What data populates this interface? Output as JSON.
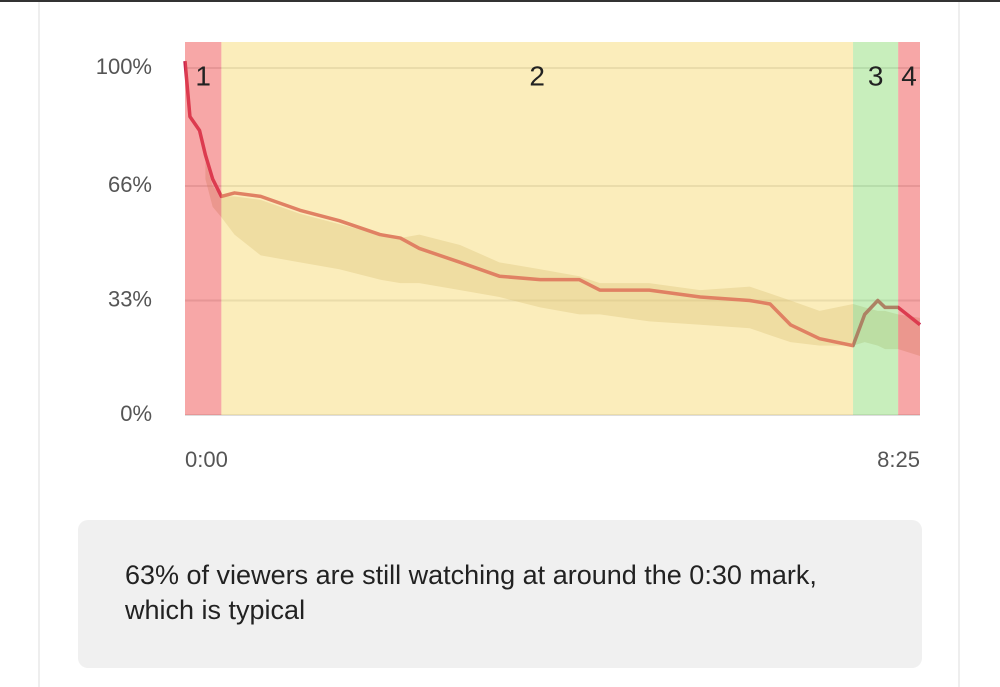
{
  "chart_data": {
    "type": "line",
    "x": [
      0,
      3.4,
      10,
      14,
      19,
      25,
      34,
      52,
      79,
      106,
      134,
      148,
      161,
      189,
      216,
      244,
      271,
      285,
      319,
      354,
      388,
      402,
      416,
      436,
      459,
      467,
      476,
      481,
      490,
      505
    ],
    "series": [
      {
        "color": "#c8264e",
        "values": [
          102,
          86,
          82,
          75,
          68,
          63,
          64,
          63,
          59,
          56,
          52,
          51,
          48,
          44,
          40,
          39,
          39,
          36,
          36,
          34,
          33,
          32,
          26,
          22,
          20,
          29,
          33,
          31,
          31,
          26
        ]
      }
    ],
    "band": {
      "color": "#b8a070",
      "upper": [
        null,
        null,
        null,
        73,
        66,
        63,
        63,
        62,
        58,
        55,
        52,
        51,
        52,
        49,
        44,
        42,
        40,
        38,
        38,
        36,
        37,
        35,
        33,
        30,
        32,
        31,
        30,
        30,
        29,
        28
      ],
      "lower": [
        null,
        null,
        null,
        68,
        60,
        57,
        52,
        46,
        44,
        42,
        39,
        38,
        38,
        36,
        34,
        31,
        29,
        29,
        27,
        26,
        25,
        23,
        21,
        20,
        20,
        21,
        20,
        19,
        19,
        17
      ]
    },
    "segments": [
      {
        "label": "1",
        "start": 0,
        "end": 25,
        "color": "#f05050"
      },
      {
        "label": "2",
        "start": 25,
        "end": 459,
        "color": "#f8dc78"
      },
      {
        "label": "3",
        "start": 459,
        "end": 490,
        "color": "#92dd7a"
      },
      {
        "label": "4",
        "start": 490,
        "end": 505,
        "color": "#f05050"
      }
    ],
    "xlim": [
      0,
      505
    ],
    "xticks": [
      {
        "value": 0,
        "label": "0:00"
      },
      {
        "value": 505,
        "label": "8:25"
      }
    ],
    "ylim": [
      0,
      107.5
    ],
    "yticks": [
      {
        "value": 0,
        "label": "0%"
      },
      {
        "value": 33,
        "label": "33%"
      },
      {
        "value": 66,
        "label": "66%"
      },
      {
        "value": 100,
        "label": "100%"
      }
    ],
    "grid": true,
    "note": "63% of viewers are still watching at around the 0:30 mark, which is typical"
  }
}
